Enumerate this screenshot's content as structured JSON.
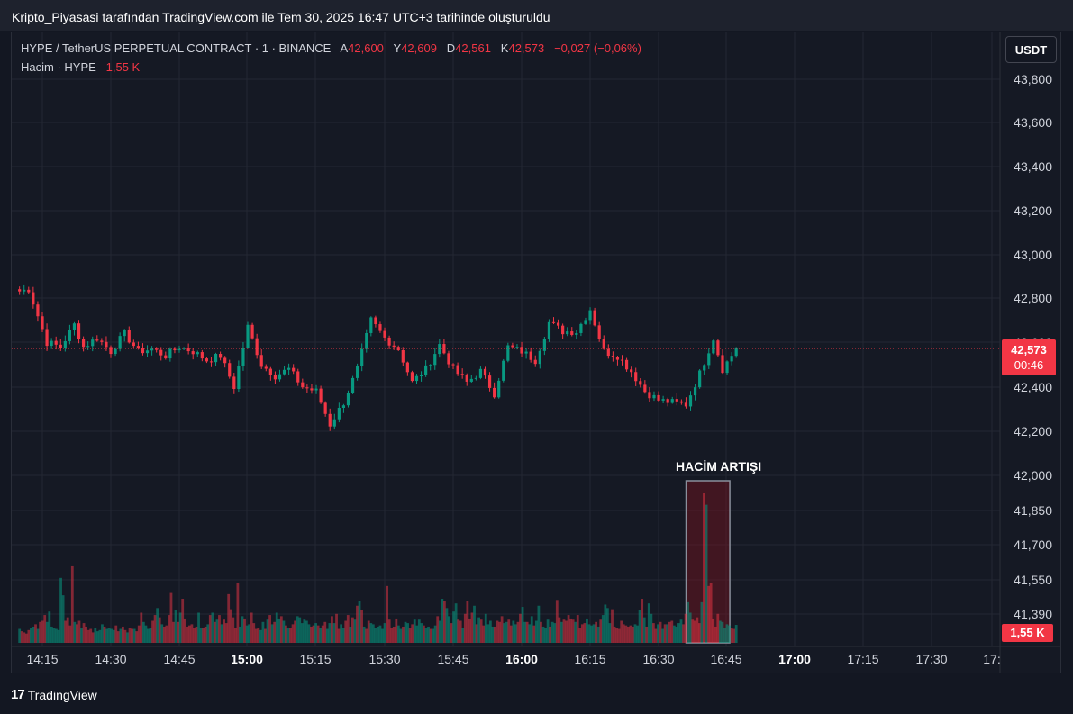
{
  "caption": "Kripto_Piyasasi tarafından TradingView.com ile Tem 30, 2025 16:47 UTC+3 tarihinde oluşturuldu",
  "legend": {
    "symbol": "HYPE / TetherUS PERPETUAL CONTRACT · 1 · BINANCE",
    "o_label": "A",
    "o_value": "42,600",
    "h_label": "Y",
    "h_value": "42,609",
    "l_label": "D",
    "l_value": "42,561",
    "c_label": "K",
    "c_value": "42,573",
    "change": "−0,027 (−0,06%)",
    "volume_label": "Hacim · HYPE",
    "volume_value": "1,55 K"
  },
  "currency_button": "USDT",
  "last_price": {
    "price": "42,573",
    "countdown": "00:46"
  },
  "volume_tag": "1,55 K",
  "annotation": "HACİM ARTIŞI",
  "brand": {
    "logo": "17",
    "name": "TradingView"
  },
  "colors": {
    "up": "#089981",
    "down": "#f23645",
    "background": "#131722"
  },
  "chart_data": {
    "type": "candlestick",
    "interval_minutes": 1,
    "x_start": "14:10",
    "price_axis_ticks": [
      "43,800",
      "43,600",
      "43,400",
      "43,200",
      "43,000",
      "42,800",
      "42,600",
      "42,400",
      "42,200",
      "42,000",
      "41,850",
      "41,700",
      "41,550",
      "41,390"
    ],
    "time_axis_ticks": [
      "14:15",
      "14:30",
      "14:45",
      "15:00",
      "15:15",
      "15:30",
      "15:45",
      "16:00",
      "16:15",
      "16:30",
      "16:45",
      "17:00",
      "17:15",
      "17:30",
      "17:"
    ],
    "bold_time_ticks": [
      "15:00",
      "16:00",
      "17:00"
    ],
    "price_range": [
      42200,
      42800
    ],
    "volume_highlight": {
      "from": "16:37",
      "to": "16:45"
    },
    "close_waypoints": [
      [
        "14:10",
        42830
      ],
      [
        "14:12",
        42840
      ],
      [
        "14:14",
        42720
      ],
      [
        "14:16",
        42600
      ],
      [
        "14:19",
        42580
      ],
      [
        "14:22",
        42680
      ],
      [
        "14:24",
        42580
      ],
      [
        "14:27",
        42620
      ],
      [
        "14:30",
        42560
      ],
      [
        "14:33",
        42640
      ],
      [
        "14:36",
        42560
      ],
      [
        "14:39",
        42570
      ],
      [
        "14:42",
        42540
      ],
      [
        "14:45",
        42580
      ],
      [
        "14:48",
        42560
      ],
      [
        "14:51",
        42520
      ],
      [
        "14:54",
        42540
      ],
      [
        "14:57",
        42400
      ],
      [
        "15:00",
        42670
      ],
      [
        "15:03",
        42500
      ],
      [
        "15:06",
        42450
      ],
      [
        "15:09",
        42480
      ],
      [
        "15:12",
        42400
      ],
      [
        "15:15",
        42380
      ],
      [
        "15:18",
        42230
      ],
      [
        "15:21",
        42330
      ],
      [
        "15:24",
        42480
      ],
      [
        "15:27",
        42700
      ],
      [
        "15:30",
        42620
      ],
      [
        "15:33",
        42570
      ],
      [
        "15:36",
        42420
      ],
      [
        "15:39",
        42480
      ],
      [
        "15:42",
        42590
      ],
      [
        "15:45",
        42480
      ],
      [
        "15:48",
        42420
      ],
      [
        "15:51",
        42470
      ],
      [
        "15:54",
        42370
      ],
      [
        "15:57",
        42580
      ],
      [
        "16:00",
        42560
      ],
      [
        "16:03",
        42520
      ],
      [
        "16:06",
        42690
      ],
      [
        "16:09",
        42650
      ],
      [
        "16:12",
        42650
      ],
      [
        "16:15",
        42750
      ],
      [
        "16:18",
        42560
      ],
      [
        "16:21",
        42540
      ],
      [
        "16:24",
        42470
      ],
      [
        "16:27",
        42380
      ],
      [
        "16:30",
        42340
      ],
      [
        "16:33",
        42330
      ],
      [
        "16:36",
        42320
      ],
      [
        "16:39",
        42460
      ],
      [
        "16:42",
        42620
      ],
      [
        "16:44",
        42480
      ],
      [
        "16:47",
        42573
      ]
    ],
    "volume_k": [
      1.2,
      1.0,
      0.9,
      0.8,
      1.1,
      1.3,
      1.4,
      1.6,
      1.2,
      1.8,
      1.9,
      2.4,
      1.8,
      2.7,
      1.4,
      1.3,
      1.2,
      1.1,
      5.6,
      4.1,
      1.9,
      2.2,
      1.5,
      6.6,
      1.8,
      1.6,
      1.9,
      1.3,
      1.7,
      1.4,
      1.1,
      1.2,
      0.9,
      1.3,
      1.0,
      1.1,
      1.6,
      1.4,
      1.2,
      1.3,
      1.2,
      1.1,
      1.5,
      1.0,
      1.2,
      1.4,
      1.1,
      0.9,
      1.3,
      1.2,
      1.2,
      1.0,
      1.5,
      2.6,
      1.8,
      1.5,
      1.2,
      1.3,
      1.9,
      2.4,
      3.0,
      2.2,
      1.6,
      1.4,
      1.5,
      2.4,
      4.3,
      1.8,
      2.8,
      1.8,
      2.6,
      3.8,
      2.1,
      1.4,
      1.5,
      1.6,
      1.3,
      1.4,
      2.6,
      1.3,
      1.3,
      1.4,
      1.6,
      2.4,
      2.6,
      1.8,
      2.0,
      2.4,
      1.6,
      2.0,
      1.7,
      4.2,
      2.9,
      2.2,
      1.3,
      5.2,
      1.4,
      2.3,
      2.1,
      1.5,
      1.6,
      2.6,
      1.7,
      1.2,
      1.3,
      1.1,
      1.8,
      1.2,
      2.0,
      2.4,
      1.6,
      1.8,
      2.6,
      2.1,
      2.3,
      1.9,
      1.5,
      1.3,
      1.3,
      1.6,
      1.9,
      2.3,
      2.2,
      1.7,
      2.0,
      1.9,
      1.6,
      1.4,
      1.5,
      1.7,
      1.5,
      1.3,
      1.5,
      1.8,
      1.2,
      1.7,
      2.3,
      1.7,
      2.5,
      1.2,
      1.6,
      1.3,
      1.9,
      2.4,
      1.4,
      2.2,
      2.0,
      3.2,
      3.6,
      2.8,
      1.4,
      1.2,
      1.9,
      1.7,
      1.6,
      1.3,
      1.4,
      1.5,
      1.2,
      1.7,
      4.9,
      2.0,
      1.3,
      1.4,
      2.1,
      1.5,
      1.2,
      1.4,
      1.8,
      1.7,
      1.3,
      1.6,
      2.0,
      1.5,
      2.0,
      1.7,
      1.5,
      1.3,
      1.4,
      1.2,
      1.2,
      1.5,
      2.3,
      1.9,
      3.8,
      3.6,
      3.0,
      2.3,
      1.7,
      2.7,
      3.4,
      2.0,
      1.9,
      1.3,
      2.5,
      3.6,
      2.1,
      2.6,
      3.2,
      1.6,
      2.2,
      2.0,
      1.5,
      2.5,
      1.6,
      1.9,
      1.4,
      1.4,
      1.9,
      1.8,
      2.3,
      1.7,
      1.8,
      2.0,
      1.5,
      1.9,
      1.6,
      1.8,
      2.5,
      3.1,
      1.8,
      1.8,
      1.6,
      2.3,
      1.5,
      1.9,
      3.2,
      1.8,
      1.4,
      1.3,
      2.0,
      1.4,
      1.8,
      1.7,
      3.7,
      2.2,
      1.8,
      2.0,
      1.9,
      2.4,
      2.1,
      2.0,
      1.8,
      2.4,
      1.3,
      1.6,
      1.7,
      2.1,
      1.6,
      1.5,
      1.6,
      1.8,
      1.4,
      2.0,
      2.4,
      3.3,
      3.0,
      1.7,
      2.9,
      1.4,
      1.3,
      1.2,
      1.9,
      1.6,
      1.5,
      1.4,
      1.5,
      1.4,
      1.6,
      1.5,
      2.8,
      3.8,
      2.2,
      1.4,
      3.4,
      2.5,
      1.7,
      1.2,
      1.6,
      1.8,
      1.2,
      1.6,
      1.6,
      1.8,
      1.9,
      1.5,
      1.4,
      1.7,
      2.0,
      1.6,
      2.5,
      3.5,
      2.6,
      2.0,
      1.9,
      2.2,
      1.7,
      3.5,
      12.9,
      11.9,
      4.9,
      5.2,
      2.1,
      1.4,
      2.5,
      1.9,
      1.8,
      1.3,
      1.6,
      1.5,
      1.3,
      1.2,
      1.55
    ],
    "volume_scale_max_k": 13.5
  }
}
